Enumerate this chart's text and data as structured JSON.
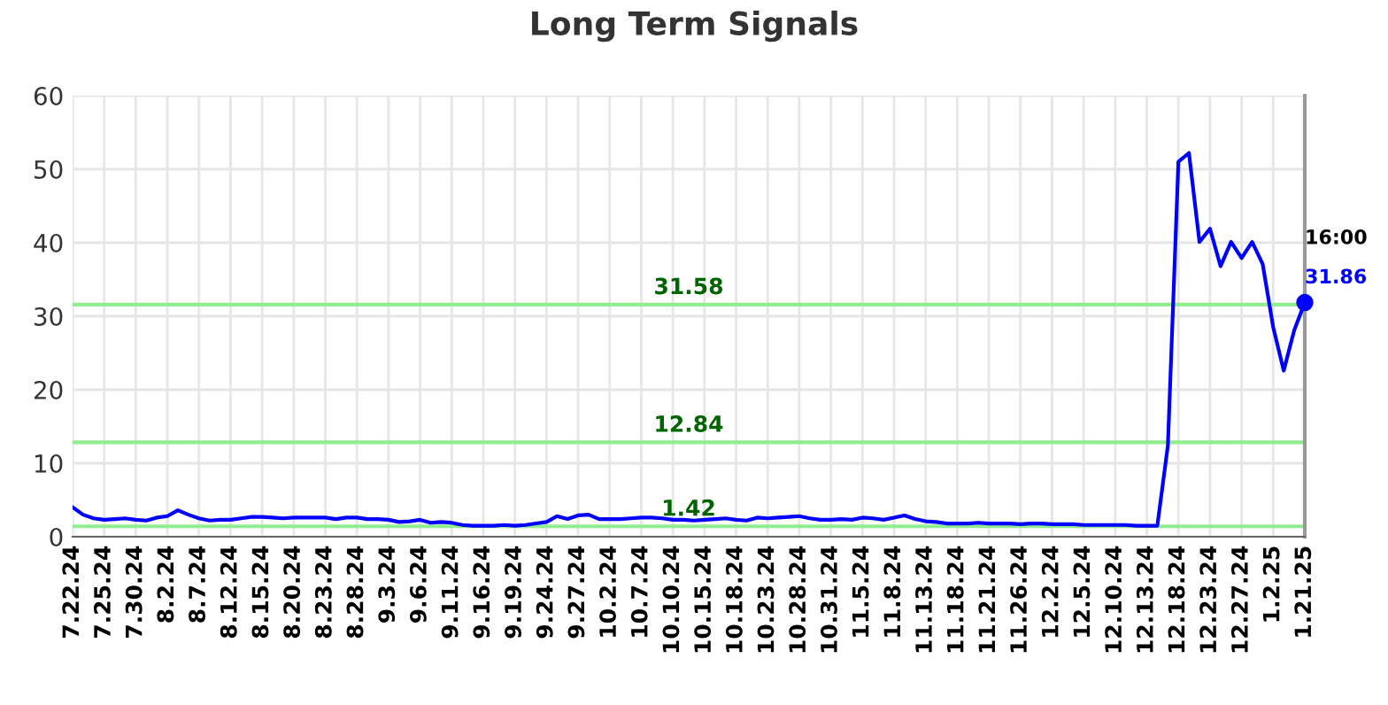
{
  "chart_data": {
    "type": "line",
    "title": "Long Term Signals",
    "categories": [
      "7.22.24",
      null,
      null,
      "7.25.24",
      null,
      null,
      "7.30.24",
      null,
      null,
      "8.2.24",
      null,
      null,
      "8.7.24",
      null,
      null,
      "8.12.24",
      null,
      null,
      "8.15.24",
      null,
      null,
      "8.20.24",
      null,
      null,
      "8.23.24",
      null,
      null,
      "8.28.24",
      null,
      null,
      "9.3.24",
      null,
      null,
      "9.6.24",
      null,
      null,
      "9.11.24",
      null,
      null,
      "9.16.24",
      null,
      null,
      "9.19.24",
      null,
      null,
      "9.24.24",
      null,
      null,
      "9.27.24",
      null,
      null,
      "10.2.24",
      null,
      null,
      "10.7.24",
      null,
      null,
      "10.10.24",
      null,
      null,
      "10.15.24",
      null,
      null,
      "10.18.24",
      null,
      null,
      "10.23.24",
      null,
      null,
      "10.28.24",
      null,
      null,
      "10.31.24",
      null,
      null,
      "11.5.24",
      null,
      null,
      "11.8.24",
      null,
      null,
      "11.13.24",
      null,
      null,
      "11.18.24",
      null,
      null,
      "11.21.24",
      null,
      null,
      "11.26.24",
      null,
      null,
      "12.2.24",
      null,
      null,
      "12.5.24",
      null,
      null,
      "12.10.24",
      null,
      null,
      "12.13.24",
      null,
      null,
      "12.18.24",
      null,
      null,
      "12.23.24",
      null,
      null,
      "12.27.24",
      null,
      null,
      "1.2.25",
      null,
      null,
      "1.21.25"
    ],
    "series": [
      {
        "color": "#0000ff",
        "values": [
          4.0,
          3.0,
          2.5,
          2.3,
          2.4,
          2.5,
          2.3,
          2.2,
          2.6,
          2.8,
          3.6,
          3.0,
          2.5,
          2.2,
          2.3,
          2.3,
          2.5,
          2.7,
          2.7,
          2.6,
          2.5,
          2.6,
          2.6,
          2.6,
          2.6,
          2.4,
          2.6,
          2.6,
          2.4,
          2.4,
          2.3,
          2.0,
          2.1,
          2.3,
          1.9,
          2.0,
          1.9,
          1.6,
          1.5,
          1.5,
          1.5,
          1.6,
          1.5,
          1.6,
          1.8,
          2.0,
          2.8,
          2.4,
          2.9,
          3.0,
          2.4,
          2.4,
          2.4,
          2.5,
          2.6,
          2.6,
          2.5,
          2.3,
          2.3,
          2.2,
          2.3,
          2.4,
          2.5,
          2.3,
          2.2,
          2.6,
          2.5,
          2.6,
          2.7,
          2.8,
          2.5,
          2.3,
          2.3,
          2.4,
          2.3,
          2.6,
          2.5,
          2.3,
          2.6,
          2.9,
          2.4,
          2.1,
          2.0,
          1.8,
          1.8,
          1.8,
          1.9,
          1.8,
          1.8,
          1.8,
          1.7,
          1.8,
          1.8,
          1.7,
          1.7,
          1.7,
          1.6,
          1.6,
          1.6,
          1.6,
          1.6,
          1.5,
          1.5,
          1.5,
          12.4,
          51,
          52.2,
          40.1,
          41.9,
          36.8,
          40.1,
          37.9,
          40.1,
          37.1,
          28.5,
          22.6,
          28.1,
          31.86
        ]
      }
    ],
    "ylim": [
      0,
      60
    ],
    "yticks": [
      0,
      10,
      20,
      30,
      40,
      50,
      60
    ],
    "grid": true,
    "ref_lines": [
      {
        "axis": "y",
        "value": 31.58,
        "label": "31.58",
        "color": "#90ee90"
      },
      {
        "axis": "y",
        "value": 12.84,
        "label": "12.84",
        "color": "#90ee90"
      },
      {
        "axis": "y",
        "value": 1.42,
        "label": "1.42",
        "color": "#90ee90"
      }
    ],
    "annotations": [
      {
        "text": "16:00",
        "x": "1.21.25",
        "y": 31.86
      },
      {
        "text": "31.86",
        "x": "1.21.25",
        "y": 31.86
      }
    ]
  }
}
